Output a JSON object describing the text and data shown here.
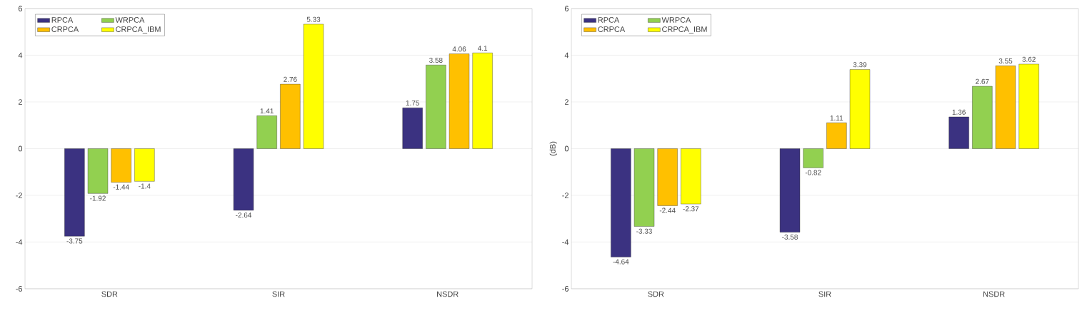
{
  "chart_data": [
    {
      "type": "bar",
      "categories": [
        "SDR",
        "SIR",
        "NSDR"
      ],
      "series": [
        {
          "name": "RPCA",
          "color": "#3b3281",
          "values": [
            -3.75,
            -2.64,
            1.75
          ]
        },
        {
          "name": "WRPCA",
          "color": "#92d050",
          "values": [
            -1.92,
            1.41,
            3.58
          ]
        },
        {
          "name": "CRPCA",
          "color": "#ffc000",
          "values": [
            -1.44,
            2.76,
            4.06
          ]
        },
        {
          "name": "CRPCA_IBM",
          "color": "#ffff00",
          "values": [
            -1.4,
            5.33,
            4.1
          ]
        }
      ],
      "ylim": [
        -6,
        6
      ],
      "yticks": [
        -6,
        -4,
        -2,
        0,
        2,
        4,
        6
      ],
      "grid": "y",
      "legend": "top left",
      "data_labels": true
    },
    {
      "type": "bar",
      "categories": [
        "SDR",
        "SIR",
        "NSDR"
      ],
      "ylabel": "(dB)",
      "series": [
        {
          "name": "RPCA",
          "color": "#3b3281",
          "values": [
            -4.64,
            -3.58,
            1.36
          ]
        },
        {
          "name": "WRPCA",
          "color": "#92d050",
          "values": [
            -3.33,
            -0.82,
            2.67
          ]
        },
        {
          "name": "CRPCA",
          "color": "#ffc000",
          "values": [
            -2.44,
            1.11,
            3.55
          ]
        },
        {
          "name": "CRPCA_IBM",
          "color": "#ffff00",
          "values": [
            -2.37,
            3.39,
            3.62
          ]
        }
      ],
      "ylim": [
        -6,
        6
      ],
      "yticks": [
        -6,
        -4,
        -2,
        0,
        2,
        4,
        6
      ],
      "grid": "y",
      "legend": "top left",
      "data_labels": true
    }
  ]
}
